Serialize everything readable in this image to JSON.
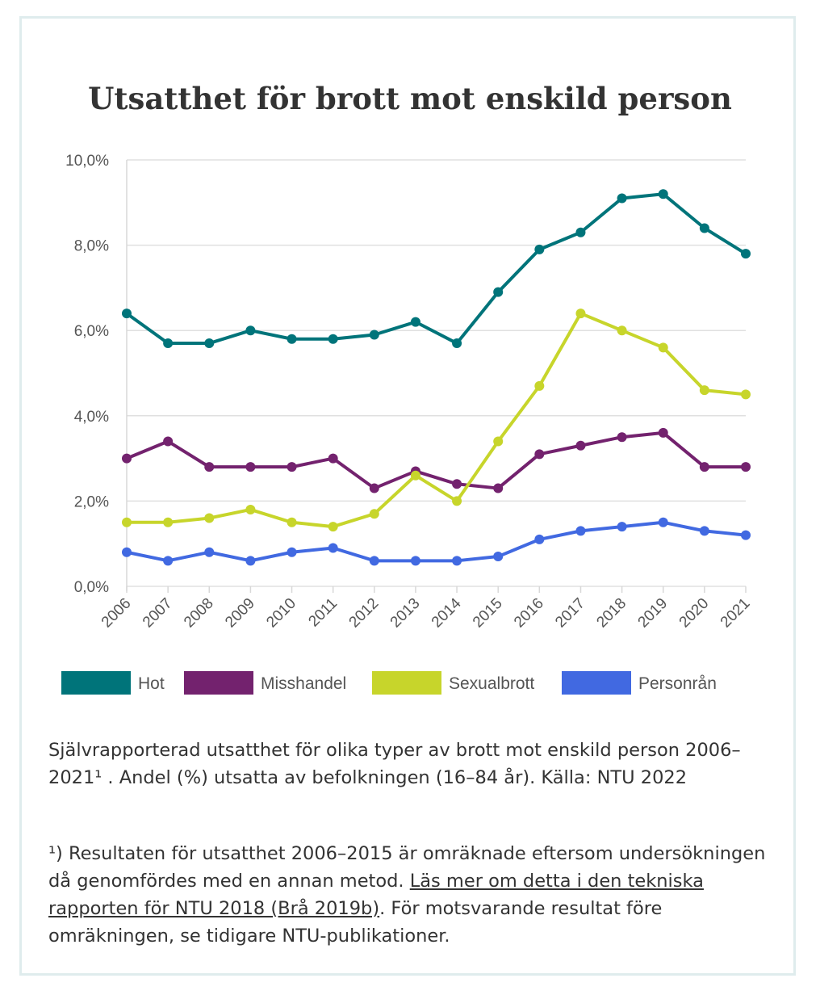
{
  "chart_data": {
    "type": "line",
    "title": "Utsatthet för brott mot enskild person",
    "categories": [
      "2006",
      "2007",
      "2008",
      "2009",
      "2010",
      "2011",
      "2012",
      "2013",
      "2014",
      "2015",
      "2016",
      "2017",
      "2018",
      "2019",
      "2020",
      "2021"
    ],
    "y_tick_labels": [
      "0,0%",
      "2,0%",
      "4,0%",
      "6,0%",
      "8,0%",
      "10,0%"
    ],
    "y_ticks": [
      0,
      2,
      4,
      6,
      8,
      10
    ],
    "ylim": [
      0,
      10
    ],
    "grid": true,
    "legend_position": "bottom",
    "series": [
      {
        "name": "Hot",
        "color": "#00747a",
        "values": [
          6.4,
          5.7,
          5.7,
          6.0,
          5.8,
          5.8,
          5.9,
          6.2,
          5.7,
          6.9,
          7.9,
          8.3,
          9.1,
          9.2,
          8.4,
          7.8
        ]
      },
      {
        "name": "Misshandel",
        "color": "#73226e",
        "values": [
          3.0,
          3.4,
          2.8,
          2.8,
          2.8,
          3.0,
          2.3,
          2.7,
          2.4,
          2.3,
          3.1,
          3.3,
          3.5,
          3.6,
          2.8,
          2.8
        ]
      },
      {
        "name": "Sexualbrott",
        "color": "#c7d52b",
        "values": [
          1.5,
          1.5,
          1.6,
          1.8,
          1.5,
          1.4,
          1.7,
          2.6,
          2.0,
          3.4,
          4.7,
          6.4,
          6.0,
          5.6,
          4.6,
          4.5
        ]
      },
      {
        "name": "Personrån",
        "color": "#4169e1",
        "values": [
          0.8,
          0.6,
          0.8,
          0.6,
          0.8,
          0.9,
          0.6,
          0.6,
          0.6,
          0.7,
          1.1,
          1.3,
          1.4,
          1.5,
          1.3,
          1.2
        ]
      }
    ]
  },
  "caption": "Självrapporterad utsatthet för olika typer av brott mot enskild person 2006–2021¹ . Andel (%) utsatta av befolkningen (16–84 år). Källa: NTU 2022",
  "footnote": {
    "before": "¹) Resultaten för utsatthet 2006–2015 är omräknade eftersom undersökningen då genomfördes med en annan metod. ",
    "link_text": "Läs mer om detta i den tekniska rapporten för NTU 2018 (Brå 2019b)",
    "after": ". För motsvarande resultat före omräkningen, se tidigare NTU-publikationer."
  }
}
